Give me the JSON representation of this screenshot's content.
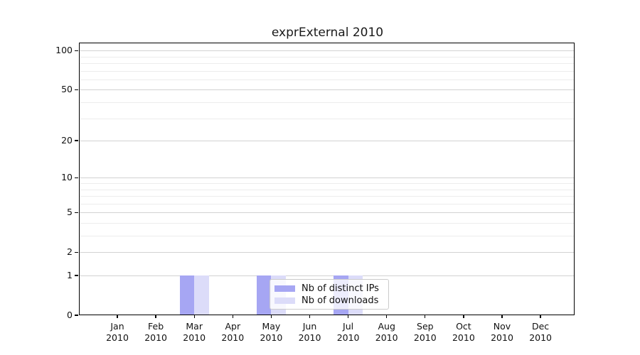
{
  "title": "exprExternal 2010",
  "chart_data": {
    "type": "bar",
    "title": "exprExternal 2010",
    "categories": [
      "Jan",
      "Feb",
      "Mar",
      "Apr",
      "May",
      "Jun",
      "Jul",
      "Aug",
      "Sep",
      "Oct",
      "Nov",
      "Dec"
    ],
    "category_sublabel": "2010",
    "series": [
      {
        "name": "Nb of distinct IPs",
        "color": "#a6a6f3",
        "values": [
          0,
          0,
          1,
          0,
          1,
          0,
          1,
          0,
          0,
          0,
          0,
          0
        ]
      },
      {
        "name": "Nb of downloads",
        "color": "#dcdcf9",
        "values": [
          0,
          0,
          1,
          0,
          1,
          0,
          1,
          0,
          0,
          0,
          0,
          0
        ]
      }
    ],
    "xlabel": "",
    "ylabel": "",
    "yticks": [
      0,
      1,
      2,
      5,
      10,
      20,
      50,
      100
    ],
    "yticks_minor": [
      3,
      4,
      6,
      7,
      8,
      9,
      30,
      40,
      60,
      70,
      80,
      90
    ],
    "y_scale": "log10(1+y)",
    "ylim": [
      0,
      115
    ],
    "grid": true,
    "legend": {
      "position": "lower center",
      "background_alpha": 0.8
    }
  },
  "colors": {
    "bar_distinct_ips": "#a6a6f3",
    "bar_downloads": "#dcdcf9",
    "grid_major": "#d2d2d2",
    "grid_minor": "#ececec",
    "spine": "#000000"
  }
}
